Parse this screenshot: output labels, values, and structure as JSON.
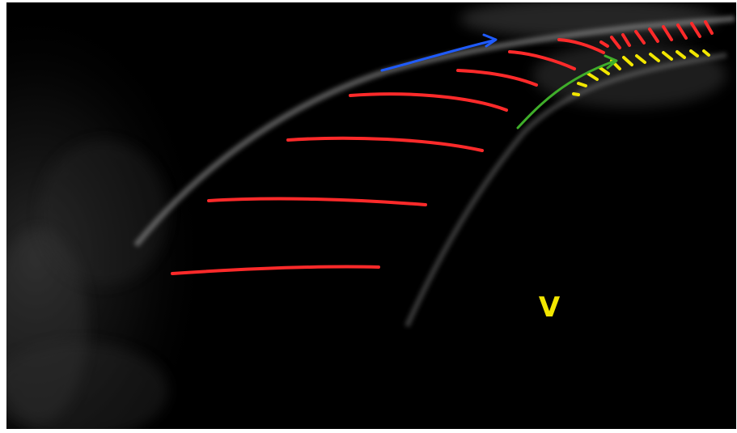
{
  "image": {
    "labels": {
      "v": "V"
    },
    "colors": {
      "tissue_fill": "#000000",
      "annotation_red": "#ff2a2a",
      "annotation_yellow": "#f2e600",
      "arrow_blue": "#1f5bff",
      "arrow_green": "#3fae2a",
      "echo_gray": "#9a9a9a"
    },
    "annotations": {
      "red_hatch_lines": "red-stroke",
      "yellow_hatch_lines": "yellow-stroke",
      "blue_arrow": "arrow",
      "green_arrow": "arrow"
    }
  }
}
